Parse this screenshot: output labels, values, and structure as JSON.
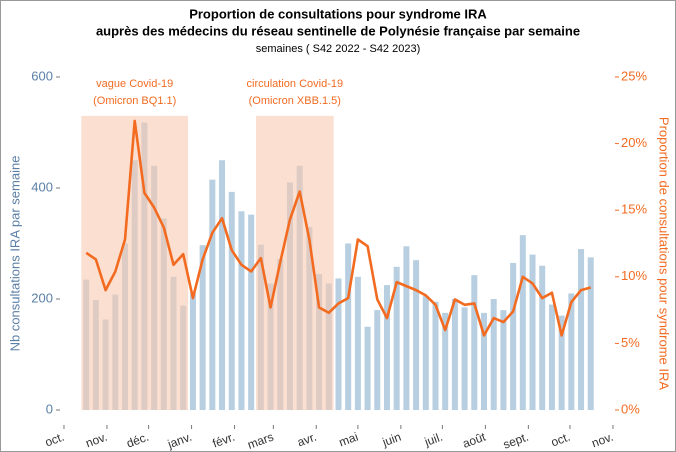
{
  "chart_data": {
    "type": "bar",
    "title": [
      "Proportion de consultations pour syndrome IRA",
      "auprès des médecins du réseau sentinelle de Polynésie française par semaine"
    ],
    "subtitle": "semaines ( S42 2022 - S42 2023)",
    "ylabel": "Nb consultations IRA par semaine",
    "y2label": "Proportion de consultations pour syndrome IRA",
    "x": [
      1,
      2,
      3,
      4,
      5,
      6,
      7,
      8,
      9,
      10,
      11,
      12,
      13,
      14,
      15,
      16,
      17,
      18,
      19,
      20,
      21,
      22,
      23,
      24,
      25,
      26,
      27,
      28,
      29,
      30,
      31,
      32,
      33,
      34,
      35,
      36,
      37,
      38,
      39,
      40,
      41,
      42,
      43,
      44,
      45,
      46,
      47,
      48,
      49,
      50,
      51,
      52,
      53
    ],
    "xlim": [
      -1.7,
      55.5
    ],
    "xticks": [
      {
        "value": -1.29,
        "label": "oct."
      },
      {
        "value": 3.14,
        "label": "nov."
      },
      {
        "value": 7.43,
        "label": "déc."
      },
      {
        "value": 11.86,
        "label": "janv."
      },
      {
        "value": 16.29,
        "label": "févr."
      },
      {
        "value": 20.29,
        "label": "mars"
      },
      {
        "value": 24.71,
        "label": "avr."
      },
      {
        "value": 29,
        "label": "mai"
      },
      {
        "value": 33.43,
        "label": "juin"
      },
      {
        "value": 37.71,
        "label": "juil."
      },
      {
        "value": 42.14,
        "label": "août"
      },
      {
        "value": 46.57,
        "label": "sept."
      },
      {
        "value": 50.86,
        "label": "oct."
      },
      {
        "value": 55.29,
        "label": "nov."
      }
    ],
    "ylim": [
      -27,
      627
    ],
    "yticks": [
      0,
      200,
      400,
      600
    ],
    "y2lim": [
      -1.125,
      26.125
    ],
    "y2ticks": [
      {
        "value": 0,
        "label": "0%"
      },
      {
        "value": 5,
        "label": "5%"
      },
      {
        "value": 10,
        "label": "10%"
      },
      {
        "value": 15,
        "label": "15%"
      },
      {
        "value": 20,
        "label": "20%"
      },
      {
        "value": 25,
        "label": "25%"
      }
    ],
    "series": [
      {
        "type": "bar",
        "color": "#b7cfe0",
        "values": [
          235,
          198,
          163,
          208,
          300,
          450,
          518,
          440,
          345,
          240,
          188,
          210,
          297,
          415,
          450,
          393,
          358,
          352,
          298,
          228,
          272,
          410,
          440,
          330,
          245,
          228,
          237,
          300,
          240,
          150,
          180,
          225,
          258,
          295,
          270,
          205,
          195,
          175,
          200,
          185,
          243,
          175,
          200,
          180,
          265,
          315,
          280,
          260,
          190,
          170,
          210,
          290,
          275
        ]
      },
      {
        "type": "line",
        "color": "#f26b21",
        "axis": "y2",
        "values": [
          11.8,
          11.3,
          9.0,
          10.4,
          12.8,
          21.7,
          16.3,
          15.2,
          13.7,
          10.9,
          11.7,
          8.4,
          11.3,
          13.3,
          14.4,
          12.0,
          10.9,
          10.4,
          11.4,
          7.7,
          11.1,
          14.3,
          16.4,
          12.8,
          7.7,
          7.3,
          8.0,
          8.4,
          12.8,
          12.3,
          8.3,
          6.9,
          9.6,
          9.3,
          9.0,
          8.6,
          7.9,
          6.0,
          8.3,
          7.9,
          8.0,
          5.6,
          6.9,
          6.6,
          7.4,
          10.0,
          9.5,
          8.4,
          8.8,
          5.6,
          8.1,
          9.0,
          9.2
        ]
      }
    ],
    "bands": [
      {
        "label": [
          "vague Covid-19",
          "(Omicron BQ1.1)"
        ],
        "xlim": [
          0.5,
          11.5
        ],
        "ylim": [
          0,
          530
        ],
        "color": "#f8c9b0"
      },
      {
        "label": [
          "circulation Covid-19",
          "(Omicron XBB.1.5)"
        ],
        "xlim": [
          18.5,
          26.5
        ],
        "ylim": [
          0,
          530
        ],
        "color": "#f8c9b0"
      }
    ],
    "ycolor": "#5b7fa6",
    "y2color": "#f26b21"
  }
}
